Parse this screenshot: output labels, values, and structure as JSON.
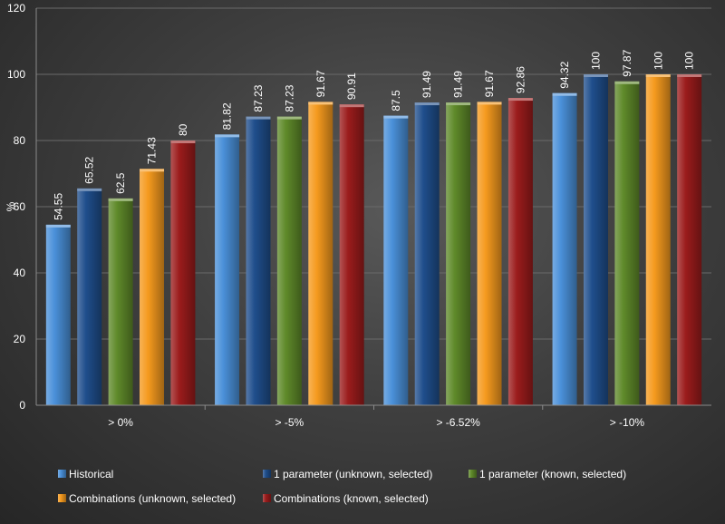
{
  "chart_data": {
    "type": "bar",
    "title": "",
    "xlabel": "",
    "ylabel": "%",
    "ylim": [
      0,
      120
    ],
    "yticks": [
      0,
      20,
      40,
      60,
      80,
      100,
      120
    ],
    "grid": true,
    "legend_position": "bottom",
    "categories": [
      "> 0%",
      "> -5%",
      "> -6.52%",
      "> -10%"
    ],
    "series": [
      {
        "name": "Historical",
        "color": "#4a90d9",
        "values": [
          54.55,
          81.82,
          87.5,
          94.32
        ],
        "labels": [
          "54.55",
          "81.82",
          "87.5",
          "94.32"
        ]
      },
      {
        "name": "1 parameter (unknown, selected)",
        "color": "#1f4e8c",
        "values": [
          65.52,
          87.23,
          91.49,
          100
        ],
        "labels": [
          "65.52",
          "87.23",
          "91.49",
          "100"
        ]
      },
      {
        "name": "1 parameter (known, selected)",
        "color": "#5f8a2a",
        "values": [
          62.5,
          87.23,
          91.49,
          97.87
        ],
        "labels": [
          "62.5",
          "87.23",
          "91.49",
          "97.87"
        ]
      },
      {
        "name": "Combinations (unknown, selected)",
        "color": "#f59a1e",
        "values": [
          71.43,
          91.67,
          91.67,
          100
        ],
        "labels": [
          "71.43",
          "91.67",
          "91.67",
          "100"
        ]
      },
      {
        "name": "Combinations (known, selected)",
        "color": "#9b1c1c",
        "values": [
          80,
          90.91,
          92.86,
          100
        ],
        "labels": [
          "80",
          "90.91",
          "92.86",
          "100"
        ]
      }
    ]
  }
}
